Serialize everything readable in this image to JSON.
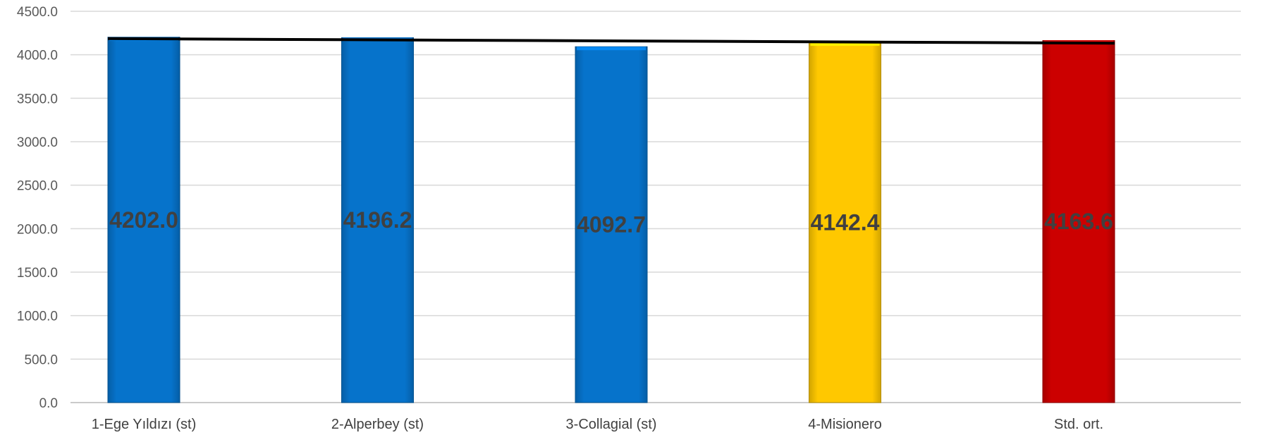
{
  "chart_data": {
    "type": "bar",
    "title": "",
    "xlabel": "",
    "ylabel": "",
    "categories": [
      "1-Ege Yıldızı (st)",
      "2-Alperbey (st)",
      "3-Collagial (st)",
      "4-Misionero",
      "Std. ort."
    ],
    "values": [
      4202.0,
      4196.2,
      4092.7,
      4142.4,
      4163.6
    ],
    "value_labels": [
      "4202.0",
      "4196.2",
      "4092.7",
      "4142.4",
      "4163.6"
    ],
    "bar_colors": [
      "#0673CB",
      "#0673CB",
      "#0673CB",
      "#FFC800",
      "#CC0000"
    ],
    "trendline": {
      "type": "linear",
      "color": "#000000"
    },
    "ylim": [
      0,
      4500
    ],
    "yticks": [
      0,
      500,
      1000,
      1500,
      2000,
      2500,
      3000,
      3500,
      4000,
      4500
    ],
    "ytick_labels": [
      "0.0",
      "500.0",
      "1000.0",
      "1500.0",
      "2000.0",
      "2500.0",
      "3000.0",
      "3500.0",
      "4000.0",
      "4500.0"
    ],
    "grid": true,
    "legend": "none"
  }
}
